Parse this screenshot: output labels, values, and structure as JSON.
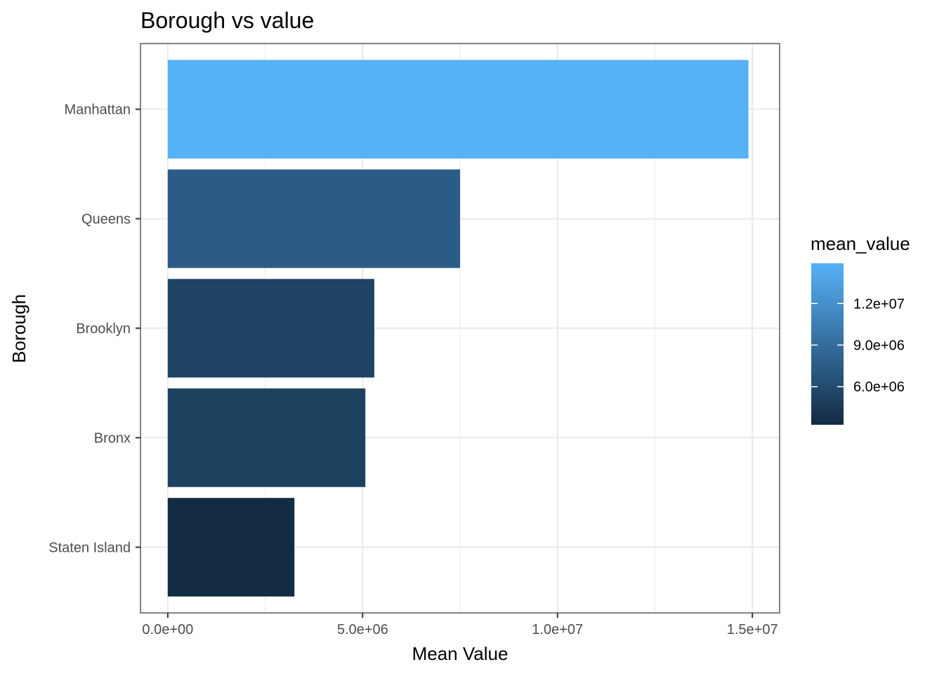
{
  "chart_data": {
    "type": "bar",
    "orientation": "horizontal",
    "title": "Borough vs value",
    "xlabel": "Mean Value",
    "ylabel": "Borough",
    "categories": [
      "Manhattan",
      "Queens",
      "Brooklyn",
      "Bronx",
      "Staten Island"
    ],
    "values": [
      14900000,
      7500000,
      5300000,
      5070000,
      3250000
    ],
    "xlim": [
      -700000,
      15700000
    ],
    "x_ticks": [
      0,
      5000000,
      10000000,
      15000000
    ],
    "x_tick_labels": [
      "0.0e+00",
      "5.0e+06",
      "1.0e+07",
      "1.5e+07"
    ],
    "grid": true,
    "legend": {
      "title": "mean_value",
      "placement": "right",
      "type": "colorbar",
      "range": [
        3250000,
        14900000
      ],
      "low_color": "#132B43",
      "high_color": "#56B1F7",
      "ticks": [
        12000000,
        9000000,
        6000000
      ],
      "tick_labels": [
        "1.2e+07",
        "9.0e+06",
        "6.0e+06"
      ]
    }
  }
}
